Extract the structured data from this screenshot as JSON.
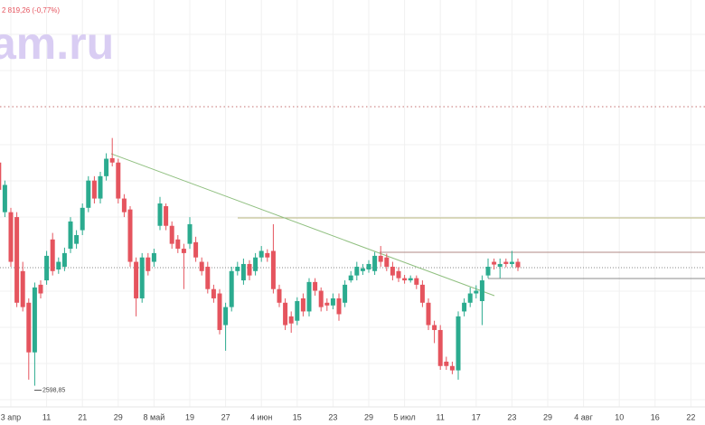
{
  "chart_data": {
    "type": "candlestick",
    "header": "2 819,26 (-0,77%)",
    "watermark": "am.ru",
    "up_color": "#2bab8f",
    "down_color": "#e5545e",
    "ylim": [
      2560,
      3306
    ],
    "annotations": [
      {
        "value": 2598.85,
        "label": "2598,85"
      }
    ],
    "categories": [
      null,
      null,
      "3 апр",
      null,
      null,
      null,
      null,
      null,
      "11",
      null,
      null,
      null,
      null,
      null,
      "21",
      null,
      null,
      null,
      null,
      null,
      "29",
      null,
      null,
      null,
      null,
      null,
      "8 май",
      null,
      null,
      null,
      null,
      null,
      "19",
      null,
      null,
      null,
      null,
      null,
      "27",
      null,
      null,
      null,
      null,
      null,
      "4 июн",
      null,
      null,
      null,
      null,
      null,
      "15",
      null,
      null,
      null,
      null,
      null,
      "23",
      null,
      null,
      null,
      null,
      null,
      "29",
      null,
      null,
      null,
      null,
      null,
      "5 июл",
      null,
      null,
      null,
      null,
      null,
      "11",
      null,
      null,
      null,
      null,
      null,
      "17",
      null,
      null,
      null,
      null,
      null,
      "23",
      null,
      null,
      null,
      null,
      null,
      "29",
      null,
      null,
      null,
      null,
      null,
      "4 авг",
      null,
      null,
      null,
      null,
      null,
      "10",
      null,
      null,
      null,
      null,
      null,
      "16",
      null,
      null,
      null,
      null,
      null,
      "22",
      null
    ],
    "open": [
      3008,
      2917,
      2917,
      2908,
      2809,
      2751,
      2660,
      2784,
      2792,
      2867,
      2812,
      2817,
      2850,
      2859,
      2884,
      2925,
      2975,
      2942,
      2983,
      3016,
      3008,
      2942,
      2922,
      2826,
      2759,
      2834,
      2826,
      2892,
      2928,
      2892,
      2867,
      2850,
      2859,
      2862,
      2826,
      2817,
      2776,
      2768,
      2710,
      2743,
      2809,
      2792,
      2822,
      2809,
      2834,
      2842,
      2846,
      2776,
      2751,
      2726,
      2718,
      2759,
      2735,
      2789,
      2773,
      2751,
      2746,
      2759,
      2751,
      2792,
      2801,
      2809,
      2812,
      2809,
      2837,
      2834,
      2817,
      2809,
      2796,
      2792,
      2796,
      2784,
      2751,
      2710,
      2701,
      2643,
      2635,
      2627,
      2735,
      2751,
      2768,
      2754,
      2801,
      2826,
      2817,
      2826,
      2822,
      2826,
      null,
      null,
      null,
      null,
      null,
      null,
      null,
      null,
      null,
      null,
      null,
      null,
      null,
      null,
      null,
      null,
      null,
      null,
      null,
      null,
      null,
      null,
      null,
      null,
      null,
      null,
      null,
      null,
      null,
      null
    ],
    "high": [
      3016,
      2975,
      2925,
      2917,
      2826,
      2759,
      2788,
      2792,
      2846,
      2879,
      2834,
      2852,
      2908,
      2884,
      2933,
      2983,
      2983,
      2991,
      3025,
      3053,
      3015,
      2950,
      2928,
      2834,
      2842,
      2842,
      2850,
      2945,
      2933,
      2900,
      2875,
      2859,
      2908,
      2872,
      2834,
      2826,
      2784,
      2776,
      2751,
      2817,
      2826,
      2832,
      2829,
      2842,
      2855,
      2849,
      2895,
      2784,
      2759,
      2735,
      2761,
      2768,
      2796,
      2796,
      2779,
      2759,
      2768,
      2768,
      2792,
      2809,
      2826,
      2822,
      2829,
      2844,
      2855,
      2841,
      2826,
      2816,
      2802,
      2801,
      2801,
      2792,
      2759,
      2718,
      2710,
      2652,
      2643,
      2735,
      2759,
      2779,
      2783,
      2801,
      2832,
      2832,
      2832,
      2832,
      2846,
      2832,
      null,
      null,
      null,
      null,
      null,
      null,
      null,
      null,
      null,
      null,
      null,
      null,
      null,
      null,
      null,
      null,
      null,
      null,
      null,
      null,
      null,
      null,
      null,
      null,
      null,
      null,
      null,
      null,
      null,
      null
    ],
    "low": [
      2950,
      2908,
      2817,
      2743,
      2735,
      2610,
      2598.85,
      2759,
      2784,
      2801,
      2804,
      2809,
      2842,
      2850,
      2875,
      2917,
      2933,
      2933,
      2975,
      3001,
      2933,
      2908,
      2817,
      2726,
      2751,
      2801,
      2817,
      2884,
      2884,
      2850,
      2842,
      2776,
      2850,
      2826,
      2801,
      2768,
      2751,
      2693,
      2663,
      2735,
      2801,
      2784,
      2792,
      2801,
      2826,
      2826,
      2768,
      2743,
      2701,
      2696,
      2710,
      2726,
      2726,
      2764,
      2735,
      2736,
      2739,
      2718,
      2743,
      2788,
      2792,
      2802,
      2806,
      2802,
      2817,
      2809,
      2792,
      2789,
      2786,
      2788,
      2776,
      2743,
      2701,
      2677,
      2628,
      2628,
      2620,
      2610,
      2726,
      2743,
      2759,
      2710,
      2796,
      2812,
      2796,
      2816,
      2816,
      2809,
      null,
      null,
      null,
      null,
      null,
      null,
      null,
      null,
      null,
      null,
      null,
      null,
      null,
      null,
      null,
      null,
      null,
      null,
      null,
      null,
      null,
      null,
      null,
      null,
      null,
      null,
      null,
      null,
      null,
      null
    ],
    "close": [
      2958,
      2967,
      2826,
      2751,
      2743,
      2660,
      2779,
      2768,
      2837,
      2809,
      2826,
      2842,
      2900,
      2875,
      2925,
      2975,
      2942,
      2983,
      3015,
      3008,
      2942,
      2917,
      2826,
      2759,
      2834,
      2809,
      2842,
      2933,
      2892,
      2859,
      2850,
      2842,
      2895,
      2834,
      2809,
      2776,
      2759,
      2701,
      2743,
      2809,
      2817,
      2822,
      2801,
      2834,
      2846,
      2834,
      2776,
      2751,
      2710,
      2713,
      2754,
      2735,
      2789,
      2773,
      2743,
      2746,
      2759,
      2730,
      2784,
      2801,
      2817,
      2814,
      2822,
      2837,
      2826,
      2817,
      2801,
      2796,
      2792,
      2796,
      2784,
      2751,
      2710,
      2701,
      2635,
      2635,
      2627,
      2726,
      2751,
      2768,
      2773,
      2792,
      2817,
      2821,
      2822,
      2822,
      2826,
      2816,
      null,
      null,
      null,
      null,
      null,
      null,
      null,
      null,
      null,
      null,
      null,
      null,
      null,
      null,
      null,
      null,
      null,
      null,
      null,
      null,
      null,
      null,
      null,
      null,
      null,
      null,
      null,
      null,
      null,
      null
    ]
  }
}
